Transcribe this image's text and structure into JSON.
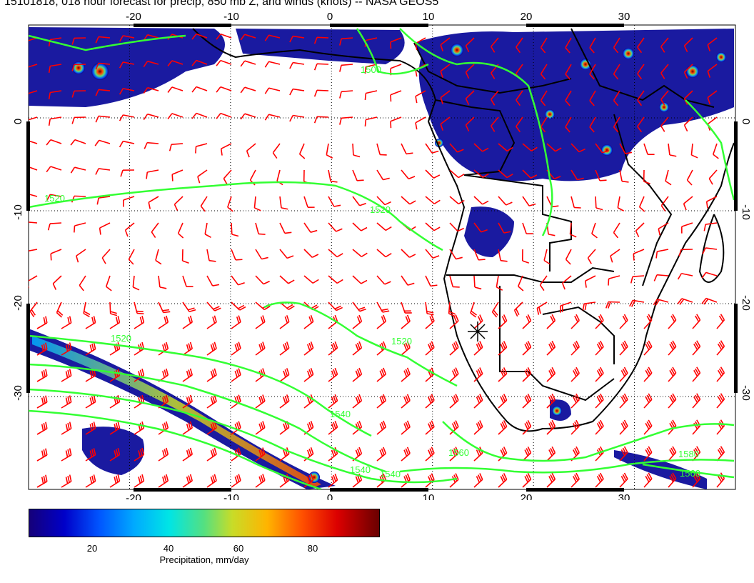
{
  "title": "15101818, 018 hour forecast for precip, 850 mb Z, and winds (knots) -- NASA GEOS5",
  "map": {
    "lon_range": [
      -30,
      40
    ],
    "lat_range": [
      -40,
      10
    ],
    "lon_ticks_bottom": [
      "-20",
      "-10",
      "0",
      "10",
      "20",
      "30"
    ],
    "lon_ticks_top": [
      "-20",
      "-10",
      "0",
      "10",
      "20",
      "30"
    ],
    "lat_ticks_left": [
      "0",
      "-10",
      "-20",
      "-30"
    ],
    "lat_ticks_right": [
      "0",
      "-10",
      "-20",
      "-30"
    ],
    "contour_labels": [
      "1520",
      "1520",
      "1520",
      "1520",
      "1540",
      "1540",
      "1540",
      "1560",
      "1580",
      "1560",
      "1500"
    ],
    "colors": {
      "wind_barbs": "#ff0000",
      "contours": "#33ff33",
      "coastlines": "#000000",
      "graticule": "#000000"
    }
  },
  "colorbar": {
    "ticks": [
      "20",
      "40",
      "60",
      "80"
    ],
    "label": "Precipitation, mm/day",
    "vmin": 0,
    "vmax": 100
  }
}
